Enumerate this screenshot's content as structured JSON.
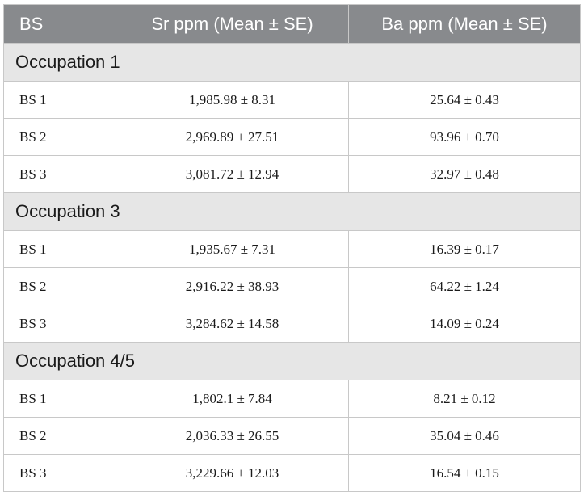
{
  "table": {
    "headers": [
      "BS",
      "Sr ppm (Mean ± SE)",
      "Ba ppm (Mean ± SE)"
    ],
    "sections": [
      {
        "title": "Occupation 1",
        "rows": [
          {
            "bs": "BS 1",
            "sr": "1,985.98 ± 8.31",
            "ba": "25.64 ± 0.43"
          },
          {
            "bs": "BS 2",
            "sr": "2,969.89 ± 27.51",
            "ba": "93.96 ± 0.70"
          },
          {
            "bs": "BS 3",
            "sr": "3,081.72 ± 12.94",
            "ba": "32.97 ± 0.48"
          }
        ]
      },
      {
        "title": "Occupation 3",
        "rows": [
          {
            "bs": "BS 1",
            "sr": "1,935.67 ± 7.31",
            "ba": "16.39 ± 0.17"
          },
          {
            "bs": "BS 2",
            "sr": "2,916.22 ± 38.93",
            "ba": "64.22 ± 1.24"
          },
          {
            "bs": "BS 3",
            "sr": "3,284.62 ± 14.58",
            "ba": "14.09 ± 0.24"
          }
        ]
      },
      {
        "title": "Occupation 4/5",
        "rows": [
          {
            "bs": "BS 1",
            "sr": "1,802.1 ± 7.84",
            "ba": "8.21 ± 0.12"
          },
          {
            "bs": "BS 2",
            "sr": "2,036.33 ± 26.55",
            "ba": "35.04 ± 0.46"
          },
          {
            "bs": "BS 3",
            "sr": "3,229.66 ± 12.03",
            "ba": "16.54 ± 0.15"
          }
        ]
      }
    ]
  },
  "colors": {
    "header_bg": "#888a8d",
    "section_bg": "#e6e6e6",
    "border": "#c8c8c8"
  }
}
